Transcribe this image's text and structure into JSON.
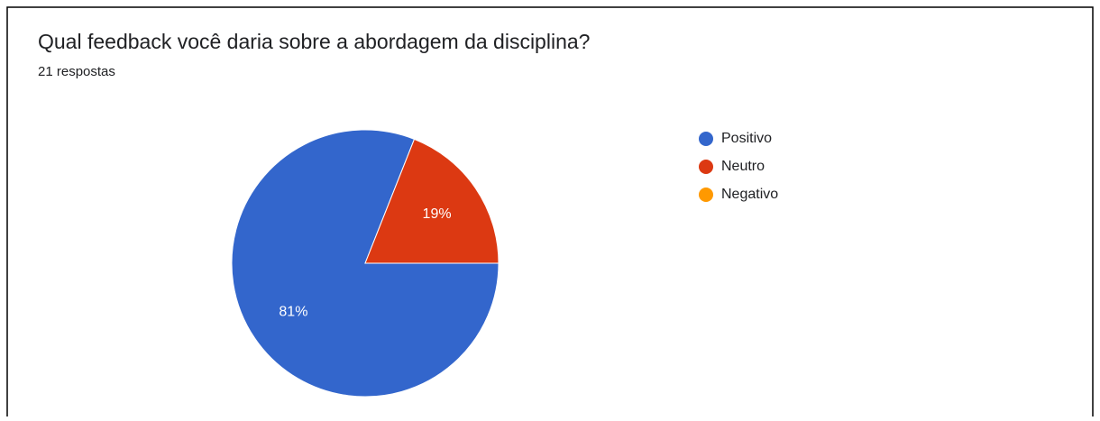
{
  "chart_data": {
    "type": "pie",
    "title": "Qual feedback você daria sobre a abordagem da disciplina?",
    "subtitle": "21 respostas",
    "categories": [
      "Positivo",
      "Neutro",
      "Negativo"
    ],
    "values": [
      81,
      19,
      0
    ],
    "value_labels": [
      "81%",
      "19%",
      null
    ],
    "colors": [
      "#3366cc",
      "#dc3912",
      "#ff9900"
    ],
    "legend": "right"
  }
}
